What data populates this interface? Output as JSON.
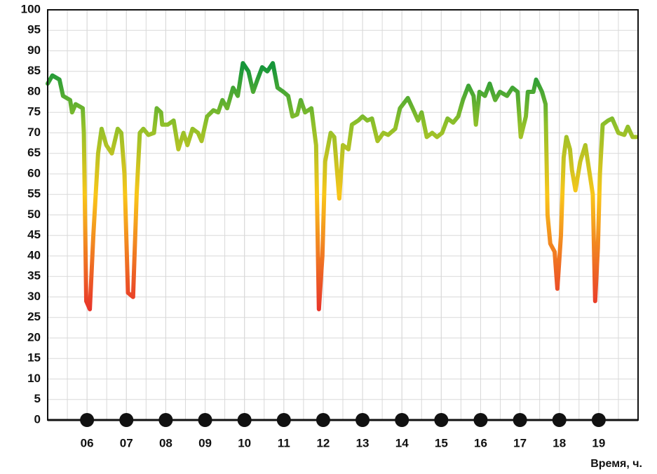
{
  "chart_data": {
    "type": "line",
    "xlabel": "Время, ч.",
    "xlim": [
      5,
      20
    ],
    "ylim": [
      0,
      100
    ],
    "xticks": [
      {
        "value": 6,
        "label": "06"
      },
      {
        "value": 7,
        "label": "07"
      },
      {
        "value": 8,
        "label": "08"
      },
      {
        "value": 9,
        "label": "09"
      },
      10,
      11,
      12,
      13,
      14,
      15,
      16,
      17,
      18,
      19
    ],
    "yticks": [
      0,
      5,
      10,
      15,
      20,
      25,
      30,
      35,
      40,
      45,
      50,
      55,
      60,
      65,
      70,
      75,
      80,
      85,
      90,
      95,
      100
    ],
    "grid": true,
    "gradient": [
      {
        "value": 27,
        "color": "#e8352a"
      },
      {
        "value": 55,
        "color": "#f9c619"
      },
      {
        "value": 72,
        "color": "#8fc02a"
      },
      {
        "value": 86,
        "color": "#17963a"
      }
    ],
    "series": [
      {
        "x": [
          5.0,
          5.12,
          5.3,
          5.39,
          5.57,
          5.62,
          5.71,
          5.89,
          5.92,
          5.98,
          6.07,
          6.16,
          6.28,
          6.37,
          6.49,
          6.63,
          6.78,
          6.87,
          6.95,
          7.04,
          7.17,
          7.26,
          7.34,
          7.43,
          7.56,
          7.7,
          7.77,
          7.88,
          7.91,
          8.05,
          8.2,
          8.32,
          8.45,
          8.55,
          8.68,
          8.82,
          8.91,
          9.05,
          9.21,
          9.33,
          9.44,
          9.56,
          9.71,
          9.83,
          9.96,
          10.1,
          10.22,
          10.33,
          10.45,
          10.58,
          10.72,
          10.84,
          10.99,
          11.11,
          11.22,
          11.34,
          11.43,
          11.54,
          11.7,
          11.82,
          11.89,
          11.98,
          12.05,
          12.19,
          12.28,
          12.41,
          12.5,
          12.64,
          12.73,
          12.89,
          13.0,
          13.12,
          13.24,
          13.38,
          13.53,
          13.65,
          13.83,
          13.95,
          14.15,
          14.27,
          14.41,
          14.5,
          14.63,
          14.77,
          14.89,
          15.02,
          15.16,
          15.3,
          15.43,
          15.55,
          15.69,
          15.82,
          15.88,
          15.97,
          16.11,
          16.23,
          16.37,
          16.49,
          16.67,
          16.81,
          16.94,
          17.02,
          17.15,
          17.2,
          17.34,
          17.41,
          17.56,
          17.65,
          17.7,
          17.77,
          17.88,
          17.95,
          18.04,
          18.11,
          18.18,
          18.27,
          18.32,
          18.41,
          18.53,
          18.66,
          18.77,
          18.85,
          18.91,
          18.98,
          19.03,
          19.1,
          19.24,
          19.34,
          19.5,
          19.65,
          19.74,
          19.86,
          19.96
        ],
        "values": [
          82,
          84,
          83,
          79,
          78,
          75,
          77,
          76,
          70,
          29,
          27,
          45,
          65,
          71,
          67,
          65,
          71,
          70,
          60,
          31,
          30,
          55,
          70,
          71,
          69.5,
          70,
          76,
          75,
          72,
          72,
          73,
          66,
          70,
          67,
          71,
          70,
          68,
          74,
          75.5,
          75,
          78,
          76,
          81,
          79,
          87,
          85,
          80,
          83,
          86,
          85,
          87,
          81,
          80,
          79,
          74,
          74.5,
          78,
          75,
          76,
          67,
          27,
          40,
          63,
          70,
          69,
          54,
          67,
          66,
          72,
          73,
          74,
          73,
          73.5,
          68,
          70,
          69.5,
          71,
          76,
          78.5,
          76,
          73,
          75,
          69,
          70,
          69,
          70,
          73.5,
          72.5,
          74,
          78,
          81.5,
          79,
          72,
          80,
          79,
          82,
          78,
          80,
          79,
          81,
          80,
          69,
          74,
          80,
          80,
          83,
          80,
          77,
          50,
          43,
          41,
          32,
          45,
          64,
          69,
          66,
          61,
          56,
          63,
          67,
          60,
          55,
          29,
          42,
          60,
          72,
          73,
          73.5,
          70,
          69.5,
          71.5,
          69,
          69
        ]
      }
    ]
  }
}
